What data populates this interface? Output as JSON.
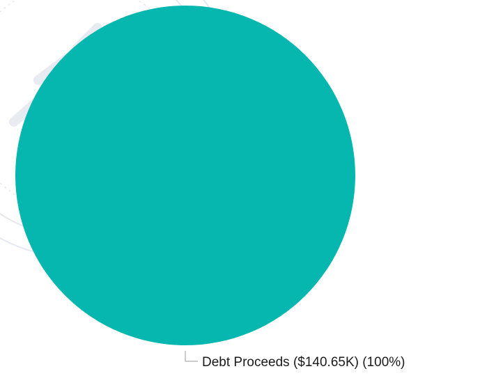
{
  "chart_data": {
    "type": "pie",
    "slices": [
      {
        "label": "Debt Proceeds ($140.65K) (100%)",
        "category": "Debt Proceeds",
        "value": 140.65,
        "display_value": "$140.65K",
        "percent": 100,
        "color": "#05b7ae"
      }
    ],
    "legend": "none",
    "label_placement": "bottom-right with leader line"
  }
}
